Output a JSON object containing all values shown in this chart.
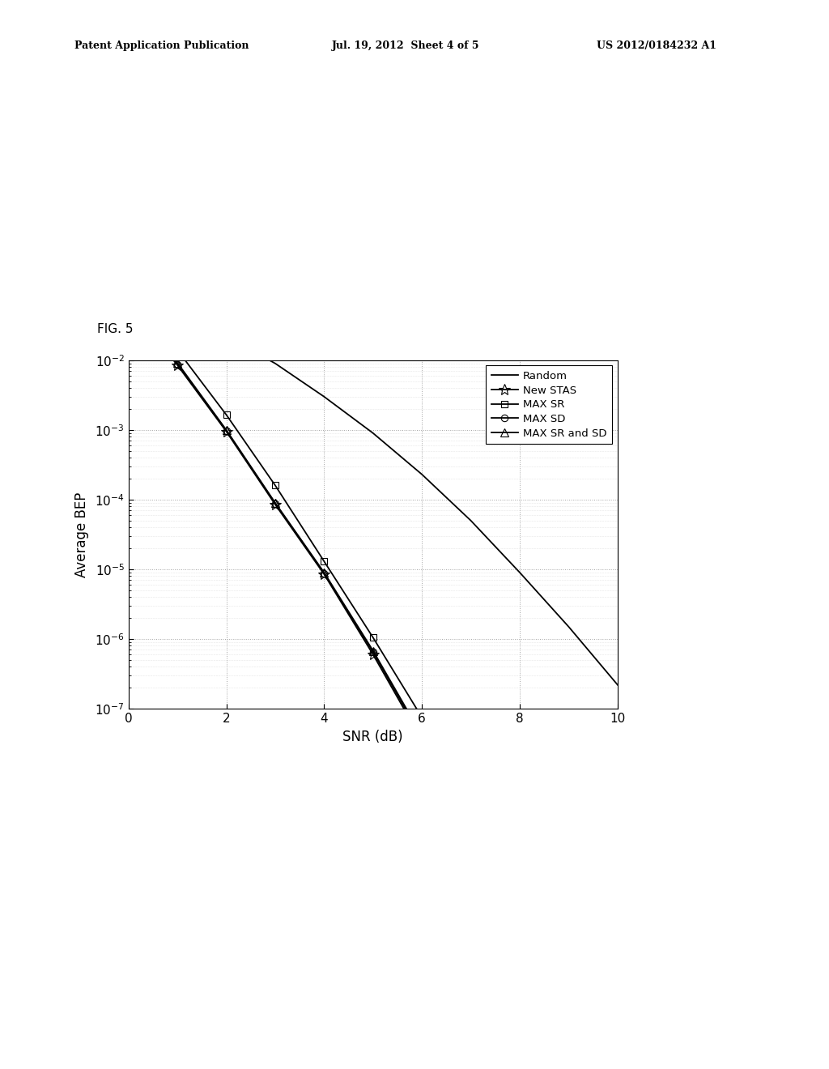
{
  "title": "",
  "fig_label": "FIG. 5",
  "xlabel": "SNR (dB)",
  "ylabel": "Average BEP",
  "xlim": [
    0,
    10
  ],
  "ylim_log": [
    -7,
    -2
  ],
  "header_line1": "Patent Application Publication",
  "header_line2": "Jul. 19, 2012  Sheet 4 of 5",
  "header_line3": "US 2012/0184232 A1",
  "series": {
    "Random": {
      "color": "#000000",
      "linestyle": "-",
      "linewidth": 1.3,
      "marker": "",
      "markersize": 0,
      "data_x": [
        0,
        1,
        2,
        3,
        4,
        5,
        6,
        7,
        8,
        9,
        10
      ],
      "data_y": [
        0.1,
        0.05,
        0.022,
        0.009,
        0.003,
        0.0009,
        0.00023,
        5e-05,
        9e-06,
        1.5e-06,
        2.2e-07
      ]
    },
    "New STAS": {
      "color": "#000000",
      "linestyle": "-",
      "linewidth": 1.3,
      "marker": "*",
      "markersize": 10,
      "data_x": [
        0,
        1,
        2,
        3,
        4,
        5,
        6,
        7,
        8
      ],
      "data_y": [
        0.065,
        0.0085,
        0.00095,
        8.5e-05,
        8.5e-06,
        6e-07,
        3.5e-08,
        2.8e-09,
        2.2e-10
      ]
    },
    "MAX SR": {
      "color": "#000000",
      "linestyle": "-",
      "linewidth": 1.3,
      "marker": "s",
      "markersize": 6,
      "data_x": [
        0,
        1,
        2,
        3,
        4,
        5,
        6,
        7,
        8
      ],
      "data_y": [
        0.085,
        0.014,
        0.00165,
        0.00016,
        1.3e-05,
        1.05e-06,
        7.5e-08,
        4.4e-09,
        2.5e-10
      ]
    },
    "MAX SD": {
      "color": "#000000",
      "linestyle": "-",
      "linewidth": 1.3,
      "marker": "o",
      "markersize": 6,
      "data_x": [
        0,
        1,
        2,
        3,
        4,
        5,
        6,
        7,
        8
      ],
      "data_y": [
        0.068,
        0.0088,
        0.00098,
        8.8e-05,
        8.8e-06,
        6.5e-07,
        3.8e-08,
        3e-09,
        2.4e-10
      ]
    },
    "MAX SR and SD": {
      "color": "#000000",
      "linestyle": "-",
      "linewidth": 1.3,
      "marker": "^",
      "markersize": 7,
      "data_x": [
        0,
        1,
        2,
        3,
        4,
        5,
        6,
        7,
        8
      ],
      "data_y": [
        0.072,
        0.0092,
        0.001,
        9e-05,
        9e-06,
        6.8e-07,
        4.1e-08,
        3.3e-09,
        2.6e-10
      ]
    }
  },
  "background_color": "#ffffff",
  "grid_major_color": "#999999",
  "grid_minor_color": "#bbbbbb"
}
